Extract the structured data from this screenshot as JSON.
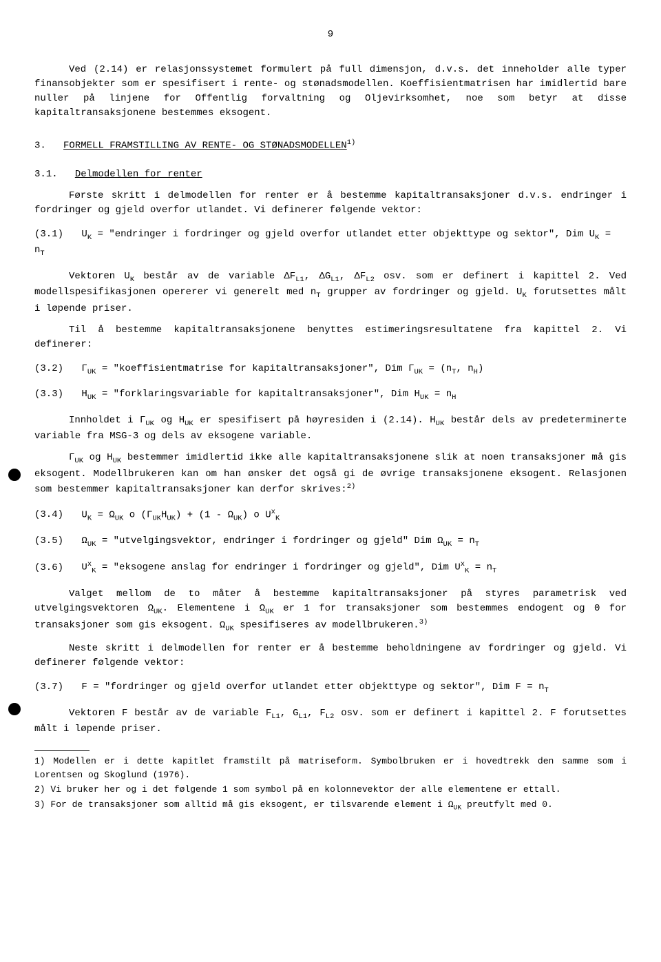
{
  "page_number": "9",
  "p1": "Ved (2.14) er relasjonssystemet formulert på full dimensjon, d.v.s. det inneholder alle typer finansobjekter som er spesifisert i rente- og stønadsmodellen. Koeffisientmatrisen har imidlertid bare nuller på linjene for Offentlig forvaltning og Oljevirksomhet, noe som betyr at disse kapitaltransaksjonene bestemmes eksogent.",
  "sec3_num": "3.",
  "sec3_title": "FORMELL FRAMSTILLING AV RENTE- OG STØNADSMODELLEN",
  "sec3_fn": "1)",
  "sub31_num": "3.1.",
  "sub31_title": "Delmodellen for renter",
  "p2": "Første skritt i delmodellen for renter er å bestemme kapitaltransaksjoner d.v.s. endringer i fordringer og gjeld overfor utlandet. Vi definerer følgende vektor:",
  "eq31_label": "(3.1)",
  "eq31_lhs": "U",
  "eq31_sub": "K",
  "eq31_txt": " = \"endringer i fordringer og gjeld overfor utlandet etter objekttype og sektor\", Dim U",
  "eq31_end": " = n",
  "eq31_end_sub": "T",
  "p3a": "Vektoren U",
  "p3b": " består av de variable ΔF",
  "p3c": ", ΔG",
  "p3d": ", ΔF",
  "p3e": " osv. som er definert i kapittel 2. Ved modellspesifikasjonen opererer vi generelt med n",
  "p3f": " grupper av fordringer og gjeld. U",
  "p3g": " forutsettes målt i løpende priser.",
  "p4": "Til å bestemme kapitaltransaksjonene benyttes estimeringsresultatene fra kapittel 2. Vi definerer:",
  "eq32_label": "(3.2)",
  "eq32_txt1": "Γ",
  "eq32_sub1": "UK",
  "eq32_txt2": " = \"koeffisientmatrise for kapitaltransaksjoner\", Dim Γ",
  "eq32_txt3": " = (n",
  "eq32_txt4": ", n",
  "eq32_txt5": ")",
  "eq33_label": "(3.3)",
  "eq33_txt1": "H",
  "eq33_txt2": " = \"forklaringsvariable for kapitaltransaksjoner\", Dim H",
  "eq33_txt3": " = n",
  "eq33_sub_h": "H",
  "p5a": "Innholdet i Γ",
  "p5b": " og H",
  "p5c": " er spesifisert på høyresiden i (2.14). H",
  "p5d": " består dels av predeterminerte variable fra MSG-3 og dels av eksogene variable.",
  "p6a": "Γ",
  "p6b": " og H",
  "p6c": " bestemmer imidlertid ikke alle kapitaltransaksjonene slik at noen transaksjoner må gis eksogent. Modellbrukeren kan om han ønsker det også gi de øvrige transaksjonene eksogent. Relasjonen som bestemmer kapitaltransaksjoner kan derfor skrives:",
  "p6_fn": "2)",
  "eq34_label": "(3.4)",
  "eq34_full": "U_K = Ω_UK o (Γ_UK H_UK) + (1 - Ω_UK) o U_K*",
  "eq35_label": "(3.5)",
  "eq35_txt1": "Ω",
  "eq35_txt2": " = \"utvelgingsvektor, endringer i fordringer og gjeld\"  Dim Ω",
  "eq35_txt3": " = n",
  "eq36_label": "(3.6)",
  "eq36_txt1": "U",
  "eq36_sup": "x",
  "eq36_txt2": " = \"eksogene anslag for endringer i fordringer og gjeld\", Dim U",
  "eq36_txt3": " = n",
  "p7a": "Valget mellom de to måter å bestemme kapitaltransaksjoner på styres parametrisk ved utvelgingsvektoren Ω",
  "p7b": ". Elementene i Ω",
  "p7c": " er 1 for transaksjoner som bestemmes endogent og 0 for transaksjoner som gis eksogent. Ω",
  "p7d": " spesifiseres av modellbrukeren.",
  "p7_fn": "3)",
  "p8": "Neste skritt i delmodellen for renter er å bestemme beholdningene av fordringer og gjeld. Vi definerer følgende vektor:",
  "eq37_label": "(3.7)",
  "eq37_txt": "F = \"fordringer og gjeld overfor utlandet etter objekttype og sektor\", Dim F = n",
  "p9a": "Vektoren F består av de variable F",
  "p9b": ", G",
  "p9c": ", F",
  "p9d": " osv. som er definert i kapittel 2. F forutsettes målt i løpende priser.",
  "fn1": "1) Modellen er i dette kapitlet framstilt på matriseform. Symbolbruken er i hovedtrekk den samme som i Lorentsen og Skoglund (1976).",
  "fn2": "2) Vi bruker her og i det følgende 1 som symbol på en kolonnevektor der alle elementene er ettall.",
  "fn3": "3) For de transaksjoner som alltid må gis eksogent, er tilsvarende element i Ω_UK preutfylt med 0.",
  "sub_L1": "L1",
  "sub_L2": "L2",
  "sub_K": "K",
  "sub_T": "T",
  "sub_UK": "UK",
  "sub_H": "H"
}
